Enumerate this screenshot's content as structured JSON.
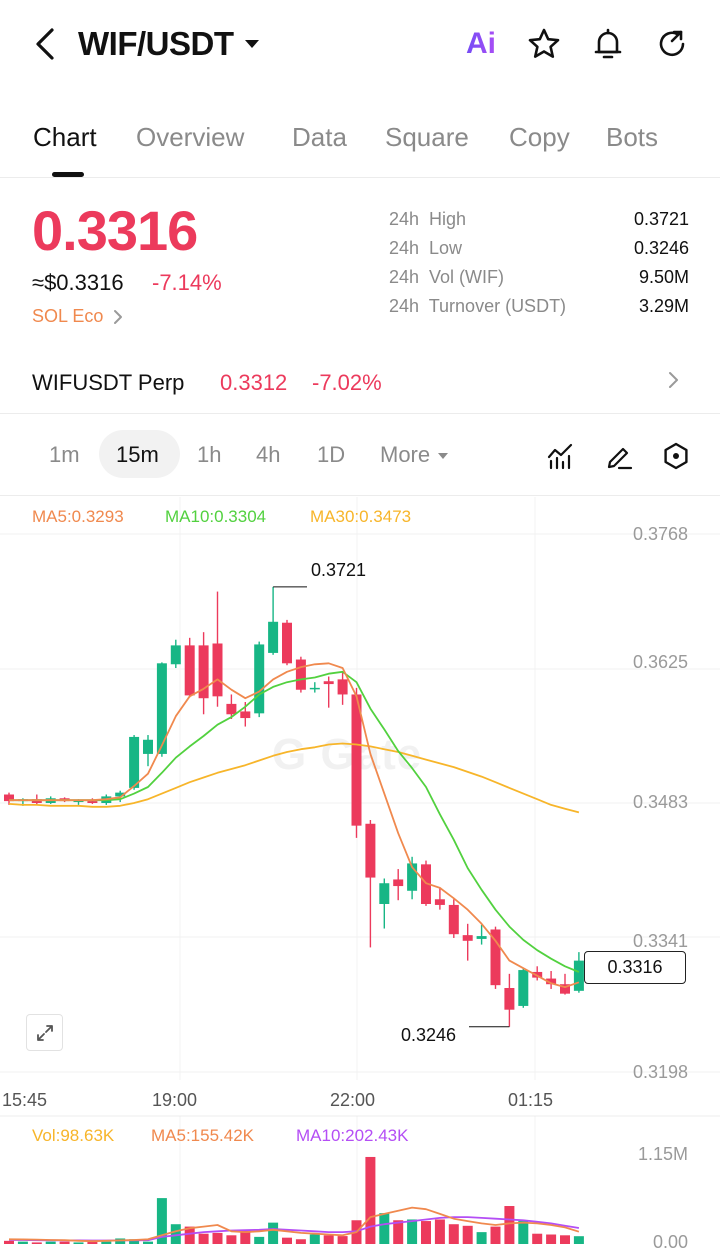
{
  "header": {
    "pair": "WIF/USDT",
    "ai_label": "Ai",
    "icons": [
      "back-icon",
      "chevron-down-icon",
      "ai-icon",
      "star-icon",
      "bell-icon",
      "refresh-icon"
    ]
  },
  "tabs": [
    {
      "label": "Chart",
      "active": true
    },
    {
      "label": "Overview",
      "active": false
    },
    {
      "label": "Data",
      "active": false
    },
    {
      "label": "Square",
      "active": false
    },
    {
      "label": "Copy",
      "active": false
    },
    {
      "label": "Bots",
      "active": false
    }
  ],
  "price": {
    "last": "0.3316",
    "usd": "≈$0.3316",
    "change_pct": "-7.14%",
    "eco_tag": "SOL Eco",
    "color_down": "#ec3a5c",
    "color_up": "#17b685"
  },
  "stats": [
    {
      "label": "24h  High",
      "value": "0.3721"
    },
    {
      "label": "24h  Low",
      "value": "0.3246"
    },
    {
      "label": "24h  Vol (WIF)",
      "value": "9.50M"
    },
    {
      "label": "24h  Turnover (USDT)",
      "value": "3.29M"
    }
  ],
  "perp": {
    "name": "WIFUSDT Perp",
    "price": "0.3312",
    "change": "-7.02%"
  },
  "intervals": {
    "items": [
      "1m",
      "15m",
      "1h",
      "4h",
      "1D",
      "More"
    ],
    "active": "15m",
    "tools": [
      "indicator-icon",
      "draw-pen-icon",
      "settings-hexagon-icon"
    ]
  },
  "chart_data": {
    "type": "candlestick",
    "ma_legend": {
      "ma5": "MA5:0.3293",
      "ma10": "MA10:0.3304",
      "ma30": "MA30:0.3473",
      "ma5_color": "#f0894e",
      "ma10_color": "#52d13f",
      "ma30_color": "#f7b52a"
    },
    "y_ticks": [
      "0.3768",
      "0.3625",
      "0.3483",
      "0.3341",
      "0.3198"
    ],
    "x_ticks": [
      "15:45",
      "19:00",
      "22:00",
      "01:15"
    ],
    "high_callout": "0.3721",
    "low_callout": "0.3246",
    "current_price": "0.3316",
    "ylim": [
      0.3198,
      0.3768
    ],
    "candles": [
      {
        "o": 0.3492,
        "h": 0.3494,
        "l": 0.3481,
        "c": 0.3485
      },
      {
        "o": 0.3485,
        "h": 0.3488,
        "l": 0.348,
        "c": 0.3487
      },
      {
        "o": 0.3487,
        "h": 0.3492,
        "l": 0.3481,
        "c": 0.3483
      },
      {
        "o": 0.3483,
        "h": 0.349,
        "l": 0.3482,
        "c": 0.3488
      },
      {
        "o": 0.3488,
        "h": 0.3489,
        "l": 0.3484,
        "c": 0.3485
      },
      {
        "o": 0.3484,
        "h": 0.3487,
        "l": 0.3481,
        "c": 0.3486
      },
      {
        "o": 0.3485,
        "h": 0.3488,
        "l": 0.3482,
        "c": 0.3483
      },
      {
        "o": 0.3483,
        "h": 0.3492,
        "l": 0.3481,
        "c": 0.349
      },
      {
        "o": 0.349,
        "h": 0.3496,
        "l": 0.3484,
        "c": 0.3494
      },
      {
        "o": 0.3499,
        "h": 0.3555,
        "l": 0.3497,
        "c": 0.3553
      },
      {
        "o": 0.3535,
        "h": 0.3555,
        "l": 0.3522,
        "c": 0.355
      },
      {
        "o": 0.3535,
        "h": 0.3632,
        "l": 0.3532,
        "c": 0.3631
      },
      {
        "o": 0.363,
        "h": 0.3656,
        "l": 0.3626,
        "c": 0.365
      },
      {
        "o": 0.365,
        "h": 0.3658,
        "l": 0.3595,
        "c": 0.3597
      },
      {
        "o": 0.365,
        "h": 0.3664,
        "l": 0.3577,
        "c": 0.3594
      },
      {
        "o": 0.3652,
        "h": 0.3707,
        "l": 0.3585,
        "c": 0.3596
      },
      {
        "o": 0.3588,
        "h": 0.3598,
        "l": 0.3572,
        "c": 0.3577
      },
      {
        "o": 0.358,
        "h": 0.359,
        "l": 0.3564,
        "c": 0.3573
      },
      {
        "o": 0.3578,
        "h": 0.3654,
        "l": 0.3574,
        "c": 0.3651
      },
      {
        "o": 0.3642,
        "h": 0.3712,
        "l": 0.364,
        "c": 0.3675
      },
      {
        "o": 0.3674,
        "h": 0.3677,
        "l": 0.3629,
        "c": 0.3631
      },
      {
        "o": 0.3635,
        "h": 0.3638,
        "l": 0.36,
        "c": 0.3603
      },
      {
        "o": 0.3604,
        "h": 0.3611,
        "l": 0.36,
        "c": 0.3605
      },
      {
        "o": 0.3612,
        "h": 0.3617,
        "l": 0.3584,
        "c": 0.3609
      },
      {
        "o": 0.3614,
        "h": 0.3622,
        "l": 0.3587,
        "c": 0.3598
      },
      {
        "o": 0.3598,
        "h": 0.3605,
        "l": 0.3446,
        "c": 0.3459
      },
      {
        "o": 0.3461,
        "h": 0.3465,
        "l": 0.333,
        "c": 0.3404
      },
      {
        "o": 0.3376,
        "h": 0.3403,
        "l": 0.335,
        "c": 0.3398
      },
      {
        "o": 0.3402,
        "h": 0.3413,
        "l": 0.338,
        "c": 0.3395
      },
      {
        "o": 0.339,
        "h": 0.3426,
        "l": 0.3381,
        "c": 0.3419
      },
      {
        "o": 0.3418,
        "h": 0.3422,
        "l": 0.3374,
        "c": 0.3376
      },
      {
        "o": 0.3381,
        "h": 0.3393,
        "l": 0.337,
        "c": 0.3375
      },
      {
        "o": 0.3375,
        "h": 0.3381,
        "l": 0.334,
        "c": 0.3344
      },
      {
        "o": 0.3343,
        "h": 0.3355,
        "l": 0.3316,
        "c": 0.3337
      },
      {
        "o": 0.3339,
        "h": 0.3354,
        "l": 0.3333,
        "c": 0.3342
      },
      {
        "o": 0.3349,
        "h": 0.3352,
        "l": 0.3286,
        "c": 0.329
      },
      {
        "o": 0.3287,
        "h": 0.3302,
        "l": 0.3246,
        "c": 0.3264
      },
      {
        "o": 0.3268,
        "h": 0.3308,
        "l": 0.3266,
        "c": 0.3306
      },
      {
        "o": 0.3304,
        "h": 0.331,
        "l": 0.3295,
        "c": 0.3298
      },
      {
        "o": 0.3297,
        "h": 0.3305,
        "l": 0.3286,
        "c": 0.3291
      },
      {
        "o": 0.3291,
        "h": 0.3302,
        "l": 0.328,
        "c": 0.3281
      },
      {
        "o": 0.3284,
        "h": 0.3325,
        "l": 0.3282,
        "c": 0.3316
      }
    ],
    "ma5": [
      0.3486,
      0.3486,
      0.3486,
      0.3486,
      0.3486,
      0.3486,
      0.3486,
      0.3487,
      0.3489,
      0.3501,
      0.3514,
      0.3544,
      0.3575,
      0.3596,
      0.3604,
      0.3614,
      0.3603,
      0.3594,
      0.3601,
      0.3614,
      0.3622,
      0.3627,
      0.363,
      0.3631,
      0.3626,
      0.3596,
      0.3535,
      0.3493,
      0.3451,
      0.3415,
      0.3398,
      0.3393,
      0.3382,
      0.337,
      0.3355,
      0.3337,
      0.3316,
      0.3308,
      0.33,
      0.3292,
      0.3288,
      0.3293
    ],
    "ma10": [
      0.3486,
      0.3486,
      0.3486,
      0.3486,
      0.3486,
      0.3486,
      0.3486,
      0.3486,
      0.3487,
      0.3493,
      0.35,
      0.3515,
      0.3531,
      0.3543,
      0.3554,
      0.3566,
      0.3574,
      0.3585,
      0.3598,
      0.3606,
      0.3611,
      0.3614,
      0.3616,
      0.362,
      0.3622,
      0.3611,
      0.3583,
      0.3561,
      0.3538,
      0.352,
      0.35,
      0.3471,
      0.3444,
      0.3414,
      0.3391,
      0.337,
      0.3352,
      0.3338,
      0.3327,
      0.3318,
      0.331,
      0.3304
    ],
    "ma30": [
      0.3482,
      0.3481,
      0.3481,
      0.348,
      0.348,
      0.348,
      0.3479,
      0.3479,
      0.348,
      0.3483,
      0.3487,
      0.3493,
      0.3499,
      0.3505,
      0.351,
      0.3515,
      0.3519,
      0.3523,
      0.3528,
      0.3533,
      0.3537,
      0.354,
      0.3542,
      0.3545,
      0.3546,
      0.3545,
      0.3543,
      0.354,
      0.3537,
      0.3533,
      0.3529,
      0.3525,
      0.3521,
      0.3516,
      0.3511,
      0.3505,
      0.3499,
      0.3493,
      0.3487,
      0.3481,
      0.3477,
      0.3473
    ],
    "volume": {
      "legend_vol": "Vol:98.63K",
      "legend_ma5": "MA5:155.42K",
      "legend_ma10": "MA10:202.43K",
      "vol_color": "#f7b52a",
      "ma5_color": "#f0894e",
      "ma10_color": "#b44ef5",
      "y_ticks": [
        "1.15M",
        "0.00"
      ],
      "ylim": [
        0,
        1150000
      ],
      "values": [
        40000,
        30000,
        20000,
        30000,
        30000,
        20000,
        25000,
        30000,
        70000,
        60000,
        30000,
        580000,
        250000,
        220000,
        130000,
        140000,
        110000,
        180000,
        90000,
        270000,
        80000,
        60000,
        120000,
        110000,
        100000,
        300000,
        1100000,
        390000,
        300000,
        310000,
        290000,
        310000,
        250000,
        230000,
        150000,
        220000,
        480000,
        290000,
        130000,
        120000,
        110000,
        98630
      ],
      "ma5": [
        60000,
        58000,
        55000,
        50000,
        48000,
        40000,
        35000,
        40000,
        45000,
        50000,
        60000,
        110000,
        160000,
        200000,
        220000,
        240000,
        160000,
        150000,
        160000,
        180000,
        160000,
        140000,
        130000,
        120000,
        110000,
        150000,
        340000,
        380000,
        420000,
        460000,
        440000,
        380000,
        320000,
        290000,
        260000,
        240000,
        260000,
        270000,
        260000,
        240000,
        210000,
        155420
      ],
      "ma10": [
        50000,
        50000,
        48000,
        47000,
        46000,
        45000,
        44000,
        44000,
        45000,
        45000,
        48000,
        90000,
        110000,
        130000,
        150000,
        160000,
        170000,
        175000,
        180000,
        190000,
        180000,
        170000,
        160000,
        150000,
        150000,
        160000,
        220000,
        250000,
        270000,
        290000,
        310000,
        330000,
        340000,
        340000,
        330000,
        320000,
        310000,
        300000,
        280000,
        260000,
        230000,
        202430
      ]
    }
  }
}
